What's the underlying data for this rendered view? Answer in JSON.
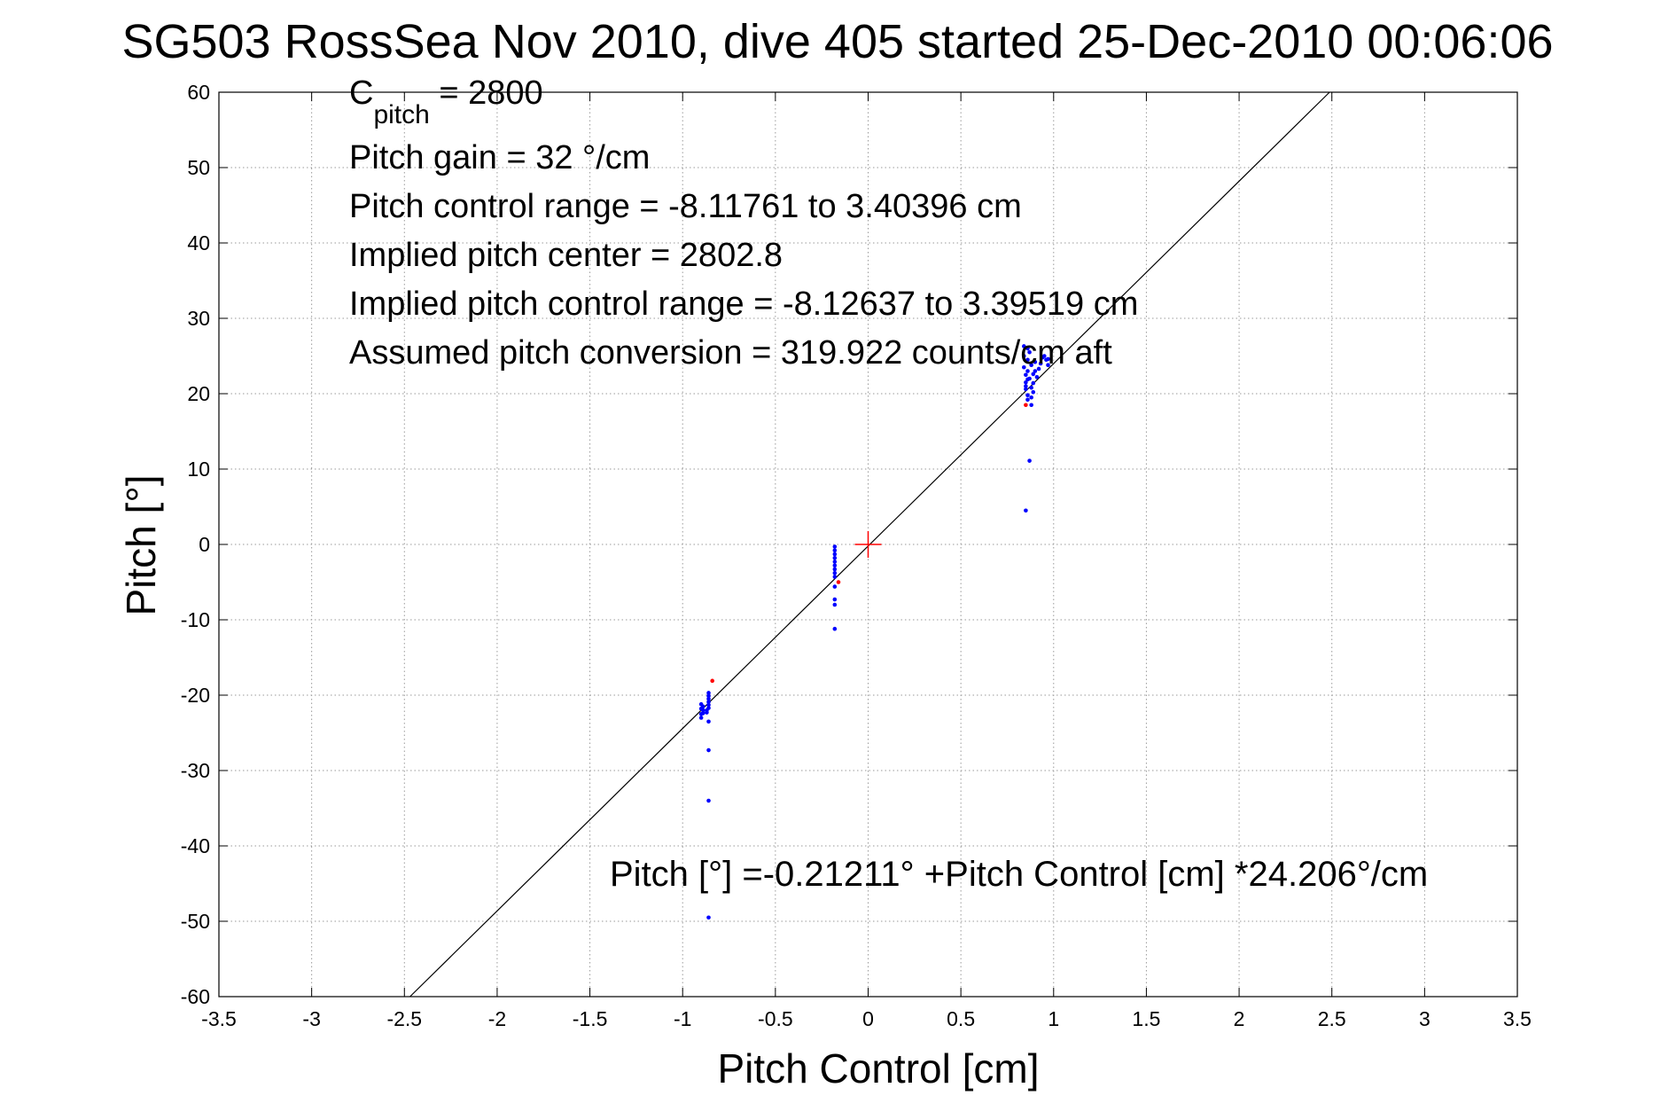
{
  "chart_data": {
    "type": "scatter",
    "title": "SG503 RossSea Nov 2010, dive 405 started 25-Dec-2010 00:06:06",
    "xlabel": "Pitch Control [cm]",
    "ylabel": "Pitch [°]",
    "xlim": [
      -3.5,
      3.5
    ],
    "ylim": [
      -60,
      60
    ],
    "grid": true,
    "x_ticks": [
      -3.5,
      -3,
      -2.5,
      -2,
      -1.5,
      -1,
      -0.5,
      0,
      0.5,
      1,
      1.5,
      2,
      2.5,
      3,
      3.5
    ],
    "x_tick_labels": [
      "-3.5",
      "-3",
      "-2.5",
      "-2",
      "-1.5",
      "-1",
      "-0.5",
      "0",
      "0.5",
      "1",
      "1.5",
      "2",
      "2.5",
      "3",
      "3.5"
    ],
    "y_ticks": [
      -60,
      -50,
      -40,
      -30,
      -20,
      -10,
      0,
      10,
      20,
      30,
      40,
      50,
      60
    ],
    "y_tick_labels": [
      "-60",
      "-50",
      "-40",
      "-30",
      "-20",
      "-10",
      "0",
      "10",
      "20",
      "30",
      "40",
      "50",
      "60"
    ],
    "annotations": {
      "c_pitch_main": "C",
      "c_pitch_sub": "pitch",
      "c_pitch_value": " = 2800",
      "pitch_gain": "Pitch gain = 32 °/cm",
      "control_range": "Pitch control range = -8.11761 to 3.40396 cm",
      "implied_center": "Implied pitch center = 2802.8",
      "implied_range": "Implied pitch control range = -8.12637 to 3.39519 cm",
      "assumed_conversion": "Assumed pitch conversion = 319.922 counts/cm aft",
      "fit_equation": "Pitch [°] =-0.21211° +Pitch Control [cm] *24.206°/cm"
    },
    "fit_line": {
      "intercept": -0.21211,
      "slope": 24.206,
      "color": "#000000"
    },
    "center_marker": {
      "x": 0,
      "y": 0,
      "color": "#ff0000"
    },
    "series": [
      {
        "name": "blue points",
        "color": "#0000ff",
        "x": [
          -0.86,
          -0.86,
          -0.86,
          -0.86,
          -0.86,
          -0.86,
          -0.87,
          -0.87,
          -0.89,
          -0.89,
          -0.89,
          -0.9,
          -0.9,
          -0.9,
          -0.9,
          -0.86,
          -0.86,
          -0.86,
          -0.86,
          -0.18,
          -0.18,
          -0.18,
          -0.18,
          -0.18,
          -0.18,
          -0.18,
          -0.18,
          -0.18,
          -0.18,
          -0.18,
          -0.18,
          -0.18,
          0.84,
          0.84,
          0.84,
          0.85,
          0.85,
          0.85,
          0.86,
          0.86,
          0.86,
          0.86,
          0.87,
          0.87,
          0.88,
          0.88,
          0.88,
          0.89,
          0.89,
          0.89,
          0.9,
          0.9,
          0.91,
          0.92,
          0.93,
          0.94,
          0.95,
          0.96,
          0.97,
          0.97,
          0.86,
          0.88,
          0.86,
          0.85,
          0.87,
          0.85
        ],
        "y": [
          -19.7,
          -20.1,
          -20.5,
          -20.9,
          -21.3,
          -21.7,
          -22.0,
          -22.3,
          -21.5,
          -22.0,
          -22.4,
          -21.2,
          -21.8,
          -22.5,
          -23.0,
          -23.5,
          -27.3,
          -34.0,
          -49.5,
          -0.3,
          -0.8,
          -1.3,
          -1.8,
          -2.3,
          -2.8,
          -3.3,
          -3.8,
          -4.3,
          -5.6,
          -7.3,
          -8.0,
          -11.2,
          26.3,
          25.0,
          23.5,
          22.5,
          21.5,
          20.6,
          24.5,
          23.0,
          21.9,
          19.8,
          25.5,
          22.0,
          20.8,
          19.5,
          23.8,
          22.6,
          21.4,
          20.2,
          24.2,
          23.0,
          22.2,
          23.3,
          24.0,
          24.8,
          25.0,
          24.5,
          23.8,
          24.6,
          26.0,
          18.5,
          19.2,
          21.0,
          11.1,
          4.5
        ]
      },
      {
        "name": "red points",
        "color": "#ff0000",
        "x": [
          -0.84,
          -0.16,
          0.85
        ],
        "y": [
          -18.1,
          -5.0,
          18.5
        ]
      }
    ]
  }
}
